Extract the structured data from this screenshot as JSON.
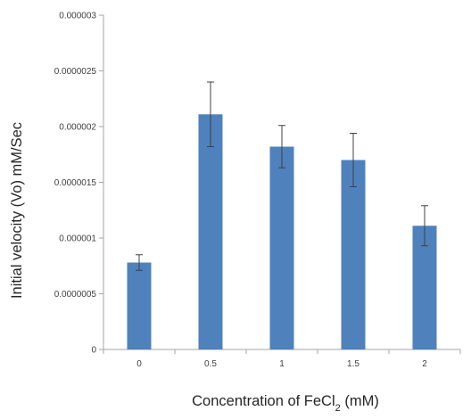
{
  "chart_data": {
    "type": "bar",
    "title": "",
    "xlabel": "Concentration of FeCl2 (mM)",
    "xlabel_parts": {
      "prefix": "Concentration of FeCl",
      "subscript": "2",
      "suffix": " (mM)"
    },
    "ylabel": "Initial velocity (Vo) mM/Sec",
    "categories": [
      "0",
      "0.5",
      "1",
      "1.5",
      "2"
    ],
    "values": [
      7.8e-07,
      2.11e-06,
      1.82e-06,
      1.7e-06,
      1.11e-06
    ],
    "errors": [
      7e-08,
      2.9e-07,
      1.9e-07,
      2.4e-07,
      1.8e-07
    ],
    "ylim": [
      0,
      3e-06
    ],
    "yticks": [
      0,
      5e-07,
      1e-06,
      1.5e-06,
      2e-06,
      2.5e-06,
      3e-06
    ],
    "ytick_labels": [
      "0",
      "0.0000005",
      "0.000001",
      "0.0000015",
      "0.000002",
      "0.0000025",
      "0.000003"
    ],
    "grid": false,
    "legend": "none",
    "colors": {
      "bar": "#4f81bd",
      "error_bar": "#404040",
      "axis": "#a6a6a6"
    }
  }
}
